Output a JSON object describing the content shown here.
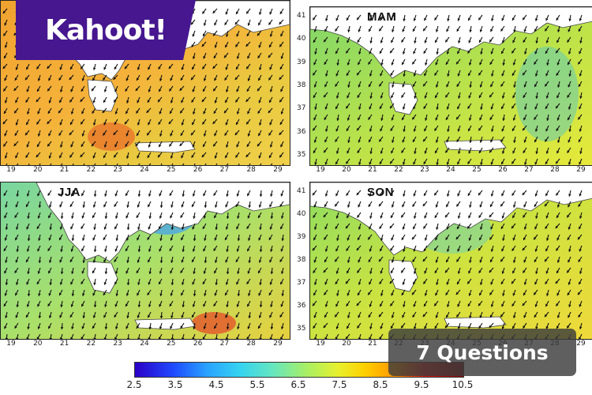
{
  "overlay": {
    "brand": "Kahoot!",
    "questions": "7 Questions"
  },
  "panels": [
    {
      "id": "DJF",
      "label": "",
      "bg": "#f2a632"
    },
    {
      "id": "MAM",
      "label": "MAM",
      "bg": "#8fdc5a"
    },
    {
      "id": "JJA",
      "label": "JJA",
      "bg": "#8ed86b"
    },
    {
      "id": "SON",
      "label": "SON",
      "bg": "#a2e05e"
    }
  ],
  "axes": {
    "x_ticks": [
      "19",
      "20",
      "21",
      "22",
      "23",
      "24",
      "25",
      "26",
      "27",
      "28",
      "29"
    ],
    "y_ticks": [
      "41",
      "40",
      "39",
      "38",
      "37",
      "36",
      "35"
    ]
  },
  "colorbar": {
    "ticks": [
      "2.5",
      "3.5",
      "4.5",
      "5.5",
      "6.5",
      "7.5",
      "8.5",
      "9.5",
      "10.5"
    ]
  },
  "colors": {
    "brand_purple": "#46178f",
    "pill_bg": "#3c3c3c",
    "land": "#ffffff",
    "arrow": "#111111"
  }
}
